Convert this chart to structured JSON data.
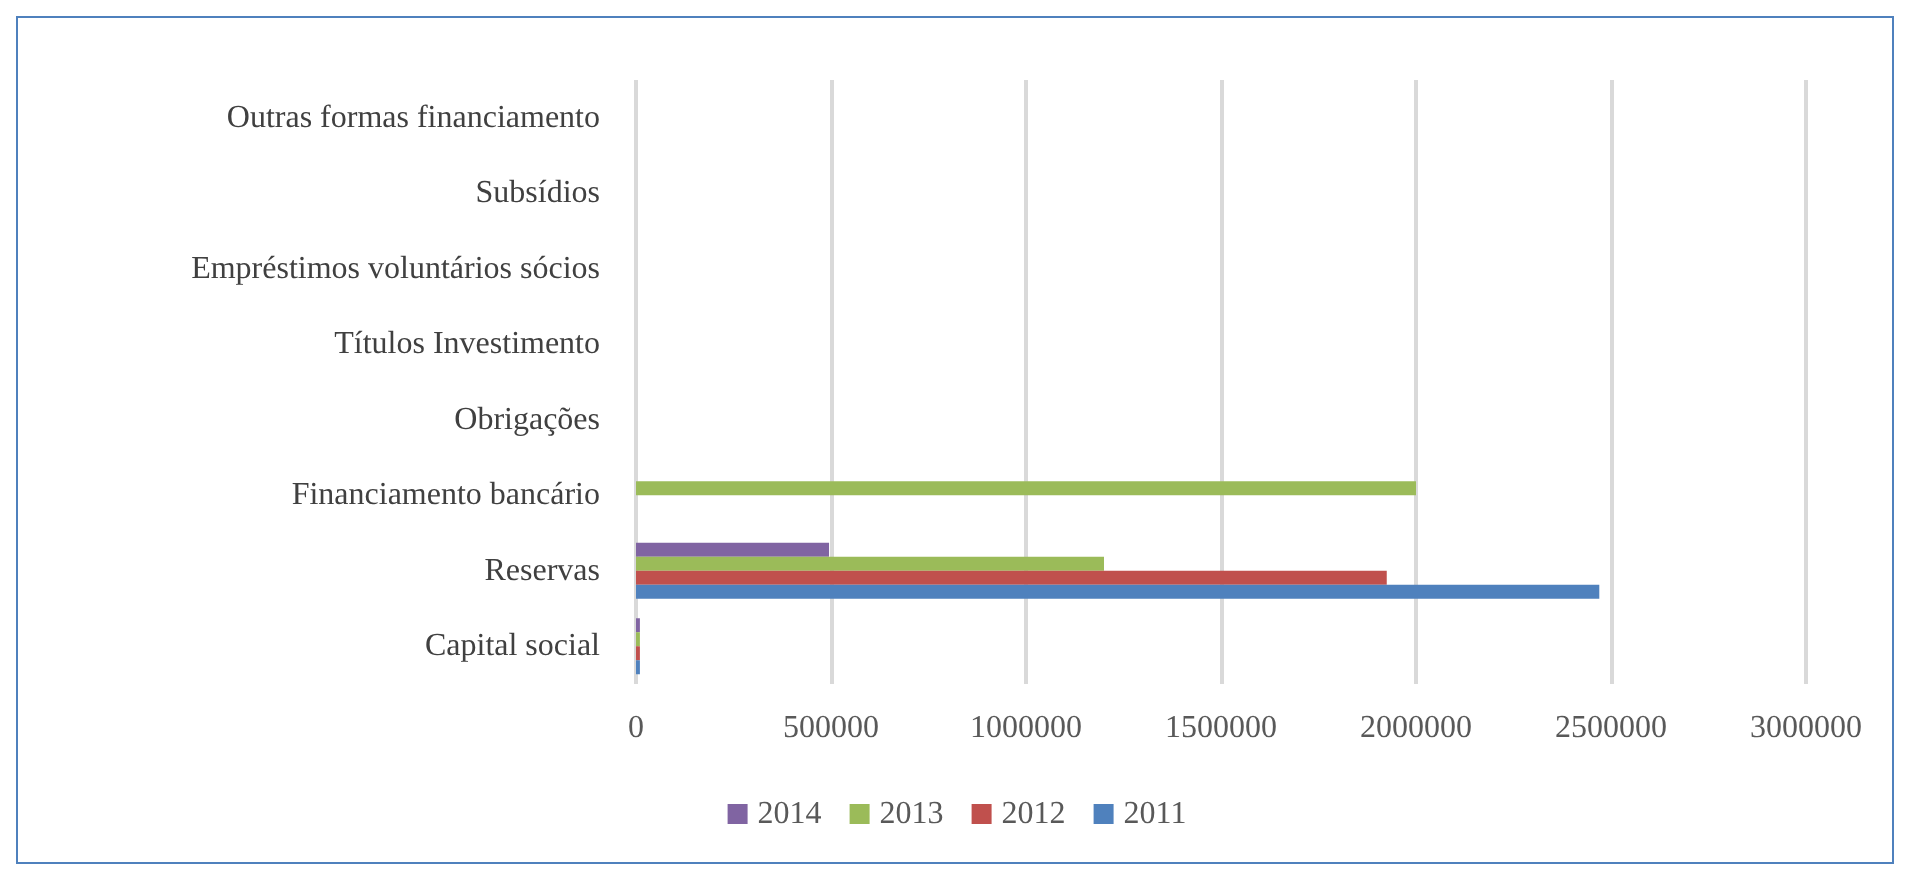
{
  "chart_data": {
    "type": "bar",
    "orientation": "horizontal",
    "categories": [
      "Outras formas financiamento",
      "Subsídios",
      "Empréstimos voluntários sócios",
      "Títulos Investimento",
      "Obrigações",
      "Financiamento bancário",
      "Reservas",
      "Capital social"
    ],
    "series": [
      {
        "name": "2014",
        "color": "#8064a2",
        "values": [
          null,
          null,
          null,
          null,
          null,
          null,
          495000,
          10000
        ]
      },
      {
        "name": "2013",
        "color": "#9bbb59",
        "values": [
          null,
          null,
          null,
          null,
          null,
          2000000,
          1200000,
          10000
        ]
      },
      {
        "name": "2012",
        "color": "#c0504d",
        "values": [
          null,
          null,
          null,
          null,
          null,
          null,
          1925000,
          10000
        ]
      },
      {
        "name": "2011",
        "color": "#4f81bd",
        "values": [
          null,
          null,
          null,
          null,
          null,
          null,
          2470000,
          10000
        ]
      }
    ],
    "xlim": [
      0,
      3000000
    ],
    "xticks": [
      0,
      500000,
      1000000,
      1500000,
      2000000,
      2500000,
      3000000
    ],
    "grid": "x",
    "legend": "bottom"
  }
}
